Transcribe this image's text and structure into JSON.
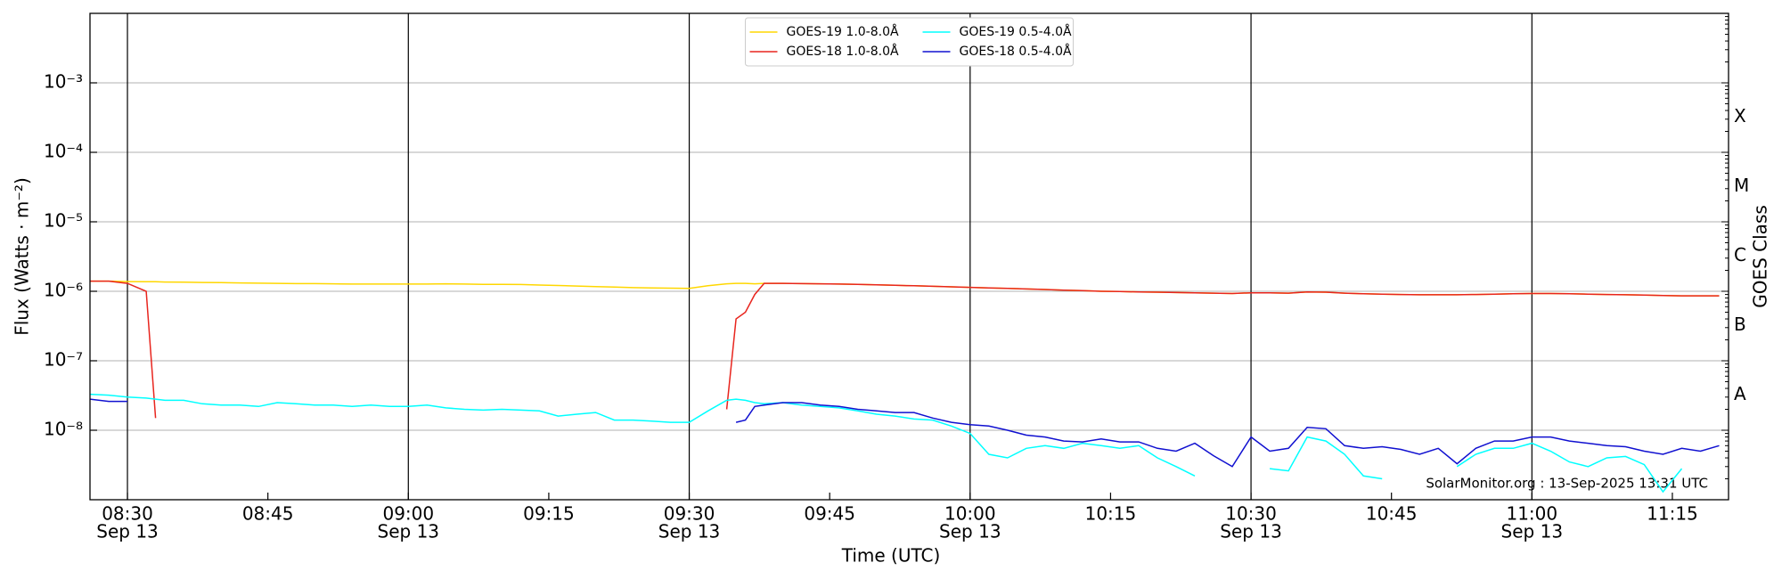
{
  "chart_data": {
    "type": "line",
    "log_y": true,
    "minor_ticks": true,
    "legend": "upper center",
    "x_label": "Time (UTC)",
    "y_label": "Flux (Watts · m⁻²)",
    "y2_label": "GOES Class",
    "annotation": "SolarMonitor.org : 13-Sep-2025 13:31 UTC",
    "xlim": [
      "08:26",
      "11:21"
    ],
    "xticks": [
      {
        "value": "08:30",
        "label": "08:30",
        "date": "Sep 13"
      },
      "08:45",
      {
        "value": "09:00",
        "label": "09:00",
        "date": "Sep 13"
      },
      "09:15",
      {
        "value": "09:30",
        "label": "09:30",
        "date": "Sep 13"
      },
      "09:45",
      {
        "value": "10:00",
        "label": "10:00",
        "date": "Sep 13"
      },
      "10:15",
      {
        "value": "10:30",
        "label": "10:30",
        "date": "Sep 13"
      },
      "10:45",
      {
        "value": "11:00",
        "label": "11:00",
        "date": "Sep 13"
      },
      "11:15"
    ],
    "ylim": [
      1e-09,
      0.01
    ],
    "yticks": [
      {
        "value": 1e-08,
        "label": "10⁻⁸"
      },
      {
        "value": 1e-07,
        "label": "10⁻⁷"
      },
      {
        "value": 1e-06,
        "label": "10⁻⁶"
      },
      {
        "value": 1e-05,
        "label": "10⁻⁵"
      },
      {
        "value": 0.0001,
        "label": "10⁻⁴"
      },
      {
        "value": 0.001,
        "label": "10⁻³"
      }
    ],
    "grid": true,
    "y2lim": [
      1e-09,
      0.01
    ],
    "y2ticks": [
      {
        "value": 3.2e-08,
        "label": "A"
      },
      {
        "value": 3.2e-07,
        "label": "B"
      },
      {
        "value": 3.2e-06,
        "label": "C"
      },
      {
        "value": 3.2e-05,
        "label": "M"
      },
      {
        "value": 0.00032,
        "label": "X"
      }
    ],
    "x": [
      "08:26",
      "08:28",
      "08:30",
      "08:32",
      "08:33",
      "08:34",
      "08:36",
      "08:38",
      "08:40",
      "08:42",
      "08:44",
      "08:46",
      "08:48",
      "08:50",
      "08:52",
      "08:54",
      "08:56",
      "08:58",
      "09:00",
      "09:02",
      "09:04",
      "09:06",
      "09:08",
      "09:10",
      "09:12",
      "09:14",
      "09:16",
      "09:18",
      "09:20",
      "09:22",
      "09:24",
      "09:26",
      "09:28",
      "09:30",
      "09:32",
      "09:34",
      "09:35",
      "09:36",
      "09:37",
      "09:38",
      "09:40",
      "09:42",
      "09:44",
      "09:46",
      "09:48",
      "09:50",
      "09:52",
      "09:54",
      "09:56",
      "09:58",
      "10:00",
      "10:02",
      "10:04",
      "10:06",
      "10:08",
      "10:10",
      "10:12",
      "10:14",
      "10:16",
      "10:18",
      "10:20",
      "10:22",
      "10:24",
      "10:26",
      "10:28",
      "10:30",
      "10:32",
      "10:34",
      "10:36",
      "10:38",
      "10:40",
      "10:42",
      "10:44",
      "10:46",
      "10:48",
      "10:50",
      "10:52",
      "10:54",
      "10:56",
      "10:58",
      "11:00",
      "11:02",
      "11:04",
      "11:06",
      "11:08",
      "11:10",
      "11:12",
      "11:14",
      "11:16",
      "11:18",
      "11:20"
    ],
    "series": [
      {
        "name": "GOES-19 1.0-8.0Å",
        "color": "#ffd700",
        "values": [
          1.4e-06,
          1.4e-06,
          1.38e-06,
          1.37e-06,
          1.37e-06,
          1.36e-06,
          1.35e-06,
          1.34e-06,
          1.33e-06,
          1.32e-06,
          1.31e-06,
          1.3e-06,
          1.29e-06,
          1.29e-06,
          1.28e-06,
          1.27e-06,
          1.27e-06,
          1.27e-06,
          1.27e-06,
          1.27e-06,
          1.28e-06,
          1.27e-06,
          1.26e-06,
          1.26e-06,
          1.25e-06,
          1.23e-06,
          1.21e-06,
          1.19e-06,
          1.17e-06,
          1.15e-06,
          1.13e-06,
          1.12e-06,
          1.11e-06,
          1.1e-06,
          1.2e-06,
          1.28e-06,
          1.3e-06,
          1.3e-06,
          1.28e-06,
          1.3e-06,
          1.3e-06,
          1.29e-06,
          1.28e-06,
          1.27e-06,
          1.26e-06,
          1.24e-06,
          1.22e-06,
          1.2e-06,
          1.18e-06,
          1.16e-06,
          1.14e-06,
          1.12e-06,
          1.1e-06,
          1.08e-06,
          1.06e-06,
          1.04e-06,
          1.02e-06,
          1e-06,
          9.9e-07,
          9.8e-07,
          9.7e-07,
          9.6e-07,
          9.5e-07,
          9.4e-07,
          9.3e-07,
          9.5e-07,
          9.5e-07,
          9.4e-07,
          9.8e-07,
          9.7e-07,
          9.4e-07,
          9.2e-07,
          9.1e-07,
          9e-07,
          8.9e-07,
          8.9e-07,
          8.9e-07,
          9e-07,
          9.1e-07,
          9.2e-07,
          9.3e-07,
          9.3e-07,
          9.2e-07,
          9.1e-07,
          9e-07,
          8.9e-07,
          8.8e-07,
          8.7e-07,
          8.6e-07,
          8.6e-07,
          8.6e-07
        ]
      },
      {
        "name": "GOES-18 1.0-8.0Å",
        "color": "#e8251e",
        "values": [
          1.4e-06,
          1.4e-06,
          1.3e-06,
          1e-06,
          1.5e-08,
          null,
          null,
          null,
          null,
          null,
          null,
          null,
          null,
          null,
          null,
          null,
          null,
          null,
          null,
          null,
          null,
          null,
          null,
          null,
          null,
          null,
          null,
          null,
          null,
          null,
          null,
          null,
          null,
          null,
          null,
          2e-08,
          4e-07,
          5e-07,
          9e-07,
          1.3e-06,
          1.3e-06,
          1.29e-06,
          1.28e-06,
          1.27e-06,
          1.26e-06,
          1.24e-06,
          1.22e-06,
          1.2e-06,
          1.18e-06,
          1.16e-06,
          1.14e-06,
          1.12e-06,
          1.1e-06,
          1.08e-06,
          1.06e-06,
          1.04e-06,
          1.02e-06,
          1e-06,
          9.9e-07,
          9.8e-07,
          9.7e-07,
          9.6e-07,
          9.5e-07,
          9.4e-07,
          9.3e-07,
          9.5e-07,
          9.5e-07,
          9.4e-07,
          9.8e-07,
          9.7e-07,
          9.4e-07,
          9.2e-07,
          9.1e-07,
          9e-07,
          8.9e-07,
          8.9e-07,
          8.9e-07,
          9e-07,
          9.1e-07,
          9.2e-07,
          9.3e-07,
          9.3e-07,
          9.2e-07,
          9.1e-07,
          9e-07,
          8.9e-07,
          8.8e-07,
          8.7e-07,
          8.6e-07,
          8.6e-07,
          8.6e-07
        ]
      },
      {
        "name": "GOES-19 0.5-4.0Å",
        "color": "#00ffff",
        "values": [
          3.3e-08,
          3.2e-08,
          3e-08,
          2.9e-08,
          2.8e-08,
          2.7e-08,
          2.7e-08,
          2.4e-08,
          2.3e-08,
          2.3e-08,
          2.2e-08,
          2.5e-08,
          2.4e-08,
          2.3e-08,
          2.3e-08,
          2.2e-08,
          2.3e-08,
          2.2e-08,
          2.2e-08,
          2.3e-08,
          2.1e-08,
          2e-08,
          1.95e-08,
          2e-08,
          1.95e-08,
          1.9e-08,
          1.6e-08,
          1.7e-08,
          1.8e-08,
          1.4e-08,
          1.4e-08,
          1.35e-08,
          1.3e-08,
          1.3e-08,
          1.9e-08,
          2.7e-08,
          2.8e-08,
          2.7e-08,
          2.5e-08,
          2.4e-08,
          2.5e-08,
          2.3e-08,
          2.2e-08,
          2.1e-08,
          1.9e-08,
          1.7e-08,
          1.6e-08,
          1.45e-08,
          1.4e-08,
          1.15e-08,
          9e-09,
          4.5e-09,
          4e-09,
          5.5e-09,
          6e-09,
          5.5e-09,
          6.5e-09,
          6e-09,
          5.5e-09,
          6e-09,
          4e-09,
          3e-09,
          2.2e-09,
          null,
          null,
          null,
          2.8e-09,
          2.6e-09,
          8e-09,
          7e-09,
          4.5e-09,
          2.2e-09,
          2e-09,
          null,
          null,
          null,
          3e-09,
          4.5e-09,
          5.5e-09,
          5.5e-09,
          6.5e-09,
          5e-09,
          3.5e-09,
          3e-09,
          4e-09,
          4.2e-09,
          3.2e-09,
          1.3e-09,
          2.8e-09,
          null,
          null
        ]
      },
      {
        "name": "GOES-18 0.5-4.0Å",
        "color": "#1010d0",
        "values": [
          2.8e-08,
          2.6e-08,
          2.6e-08,
          null,
          null,
          null,
          null,
          null,
          null,
          null,
          null,
          null,
          null,
          null,
          null,
          null,
          null,
          null,
          null,
          null,
          null,
          null,
          null,
          null,
          null,
          null,
          null,
          null,
          null,
          null,
          null,
          null,
          null,
          null,
          null,
          null,
          1.3e-08,
          1.4e-08,
          2.2e-08,
          2.3e-08,
          2.5e-08,
          2.5e-08,
          2.3e-08,
          2.2e-08,
          2e-08,
          1.9e-08,
          1.8e-08,
          1.8e-08,
          1.5e-08,
          1.3e-08,
          1.2e-08,
          1.15e-08,
          1e-08,
          8.5e-09,
          8e-09,
          7e-09,
          6.8e-09,
          7.5e-09,
          6.8e-09,
          6.8e-09,
          5.5e-09,
          5e-09,
          6.5e-09,
          4.3e-09,
          3e-09,
          8e-09,
          5e-09,
          5.5e-09,
          1.1e-08,
          1.05e-08,
          6e-09,
          5.5e-09,
          5.8e-09,
          5.3e-09,
          4.5e-09,
          5.5e-09,
          3.3e-09,
          5.5e-09,
          7e-09,
          7e-09,
          8e-09,
          8e-09,
          7e-09,
          6.5e-09,
          6e-09,
          5.8e-09,
          5e-09,
          4.5e-09,
          5.5e-09,
          5e-09,
          6e-09
        ]
      }
    ]
  }
}
